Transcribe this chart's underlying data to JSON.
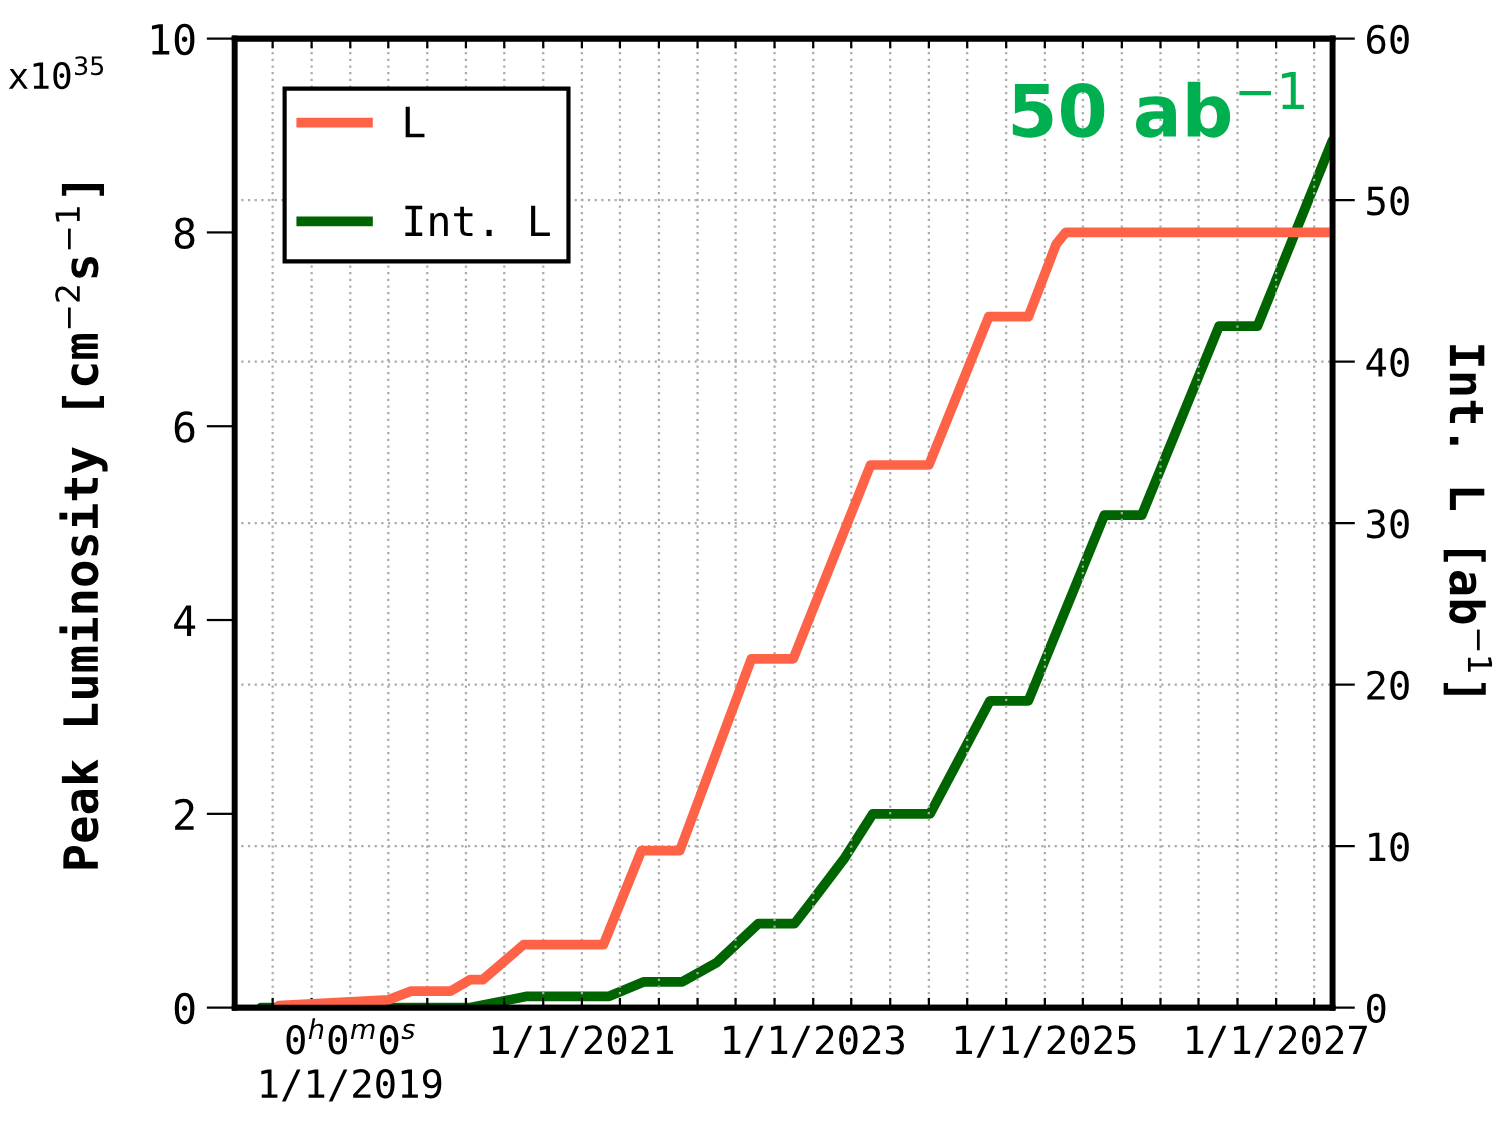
{
  "chart_data": {
    "type": "line",
    "ylabel": "Peak Luminosity [cm$^{−2}$s$^{−1}$]",
    "y2label": "Int. L [ab$^{−1}$]",
    "annotations": [
      "x10$^{35}$",
      "50 ab$^{−1}$"
    ],
    "xlim": [
      "2018-01-01",
      "2027-06-28"
    ],
    "xticks": [
      {
        "value": "2018-01-01",
        "label": null
      },
      {
        "value": "2018-05-01",
        "label": null
      },
      {
        "value": "2018-09-01",
        "label": null
      },
      {
        "value": "2019-01-01",
        "label": "0$^{h}$0$^{m}$0$^{s}$\n1/1/2019"
      },
      {
        "value": "2019-05-01",
        "label": null
      },
      {
        "value": "2019-09-01",
        "label": null
      },
      {
        "value": "2020-01-01",
        "label": null
      },
      {
        "value": "2020-05-01",
        "label": null
      },
      {
        "value": "2020-09-01",
        "label": null
      },
      {
        "value": "2021-01-01",
        "label": "1/1/2021"
      },
      {
        "value": "2021-05-01",
        "label": null
      },
      {
        "value": "2021-09-01",
        "label": null
      },
      {
        "value": "2022-01-01",
        "label": null
      },
      {
        "value": "2022-05-01",
        "label": null
      },
      {
        "value": "2022-09-01",
        "label": null
      },
      {
        "value": "2023-01-01",
        "label": "1/1/2023"
      },
      {
        "value": "2023-05-01",
        "label": null
      },
      {
        "value": "2023-09-01",
        "label": null
      },
      {
        "value": "2024-01-01",
        "label": null
      },
      {
        "value": "2024-05-01",
        "label": null
      },
      {
        "value": "2024-09-01",
        "label": null
      },
      {
        "value": "2025-01-01",
        "label": "1/1/2025"
      },
      {
        "value": "2025-05-01",
        "label": null
      },
      {
        "value": "2025-09-01",
        "label": null
      },
      {
        "value": "2026-01-01",
        "label": null
      },
      {
        "value": "2026-05-01",
        "label": null
      },
      {
        "value": "2026-09-01",
        "label": null
      },
      {
        "value": "2027-01-01",
        "label": "1/1/2027"
      },
      {
        "value": "2027-05-01",
        "label": null
      }
    ],
    "ylim": [
      0,
      10
    ],
    "yticks": [
      0,
      2,
      4,
      6,
      8,
      10
    ],
    "y2lim": [
      0,
      60
    ],
    "y2ticks": [
      0,
      10,
      20,
      30,
      40,
      50,
      60
    ],
    "grid": true,
    "legend": "top left",
    "series": [
      {
        "name": "L",
        "color": "#ff6347",
        "x": [
          "2018-05-20",
          "2019-05-01",
          "2019-07-12",
          "2019-11-14",
          "2020-01-15",
          "2020-02-24",
          "2020-07-01",
          "2021-03-10",
          "2021-07-08",
          "2021-11-06",
          "2022-06-20",
          "2022-10-30",
          "2023-07-01",
          "2024-01-01",
          "2024-07-08",
          "2024-11-10",
          "2025-02-06",
          "2025-03-08",
          "2027-06-28"
        ],
        "values": [
          0.02,
          0.08,
          0.17,
          0.17,
          0.29,
          0.29,
          0.65,
          0.65,
          1.62,
          1.62,
          3.6,
          3.6,
          5.6,
          5.6,
          7.13,
          7.13,
          7.88,
          8.0,
          8.0
        ]
      },
      {
        "name": "Int. L",
        "color": "#006400",
        "axis": "y2",
        "x": [
          "2018-03-25",
          "2020-01-15",
          "2020-07-12",
          "2021-03-28",
          "2021-07-16",
          "2021-11-14",
          "2022-03-03",
          "2022-07-12",
          "2022-11-03",
          "2023-01-01",
          "2023-04-08",
          "2023-07-08",
          "2024-01-05",
          "2024-07-12",
          "2024-11-10",
          "2025-07-08",
          "2025-11-03",
          "2026-07-05",
          "2026-11-03",
          "2027-06-28"
        ],
        "values": [
          0,
          0,
          0.7,
          0.7,
          1.6,
          1.6,
          2.8,
          5.2,
          5.2,
          6.7,
          9.2,
          12.0,
          12.0,
          19.0,
          19.0,
          30.5,
          30.5,
          42.2,
          42.2,
          53.7
        ]
      }
    ]
  }
}
